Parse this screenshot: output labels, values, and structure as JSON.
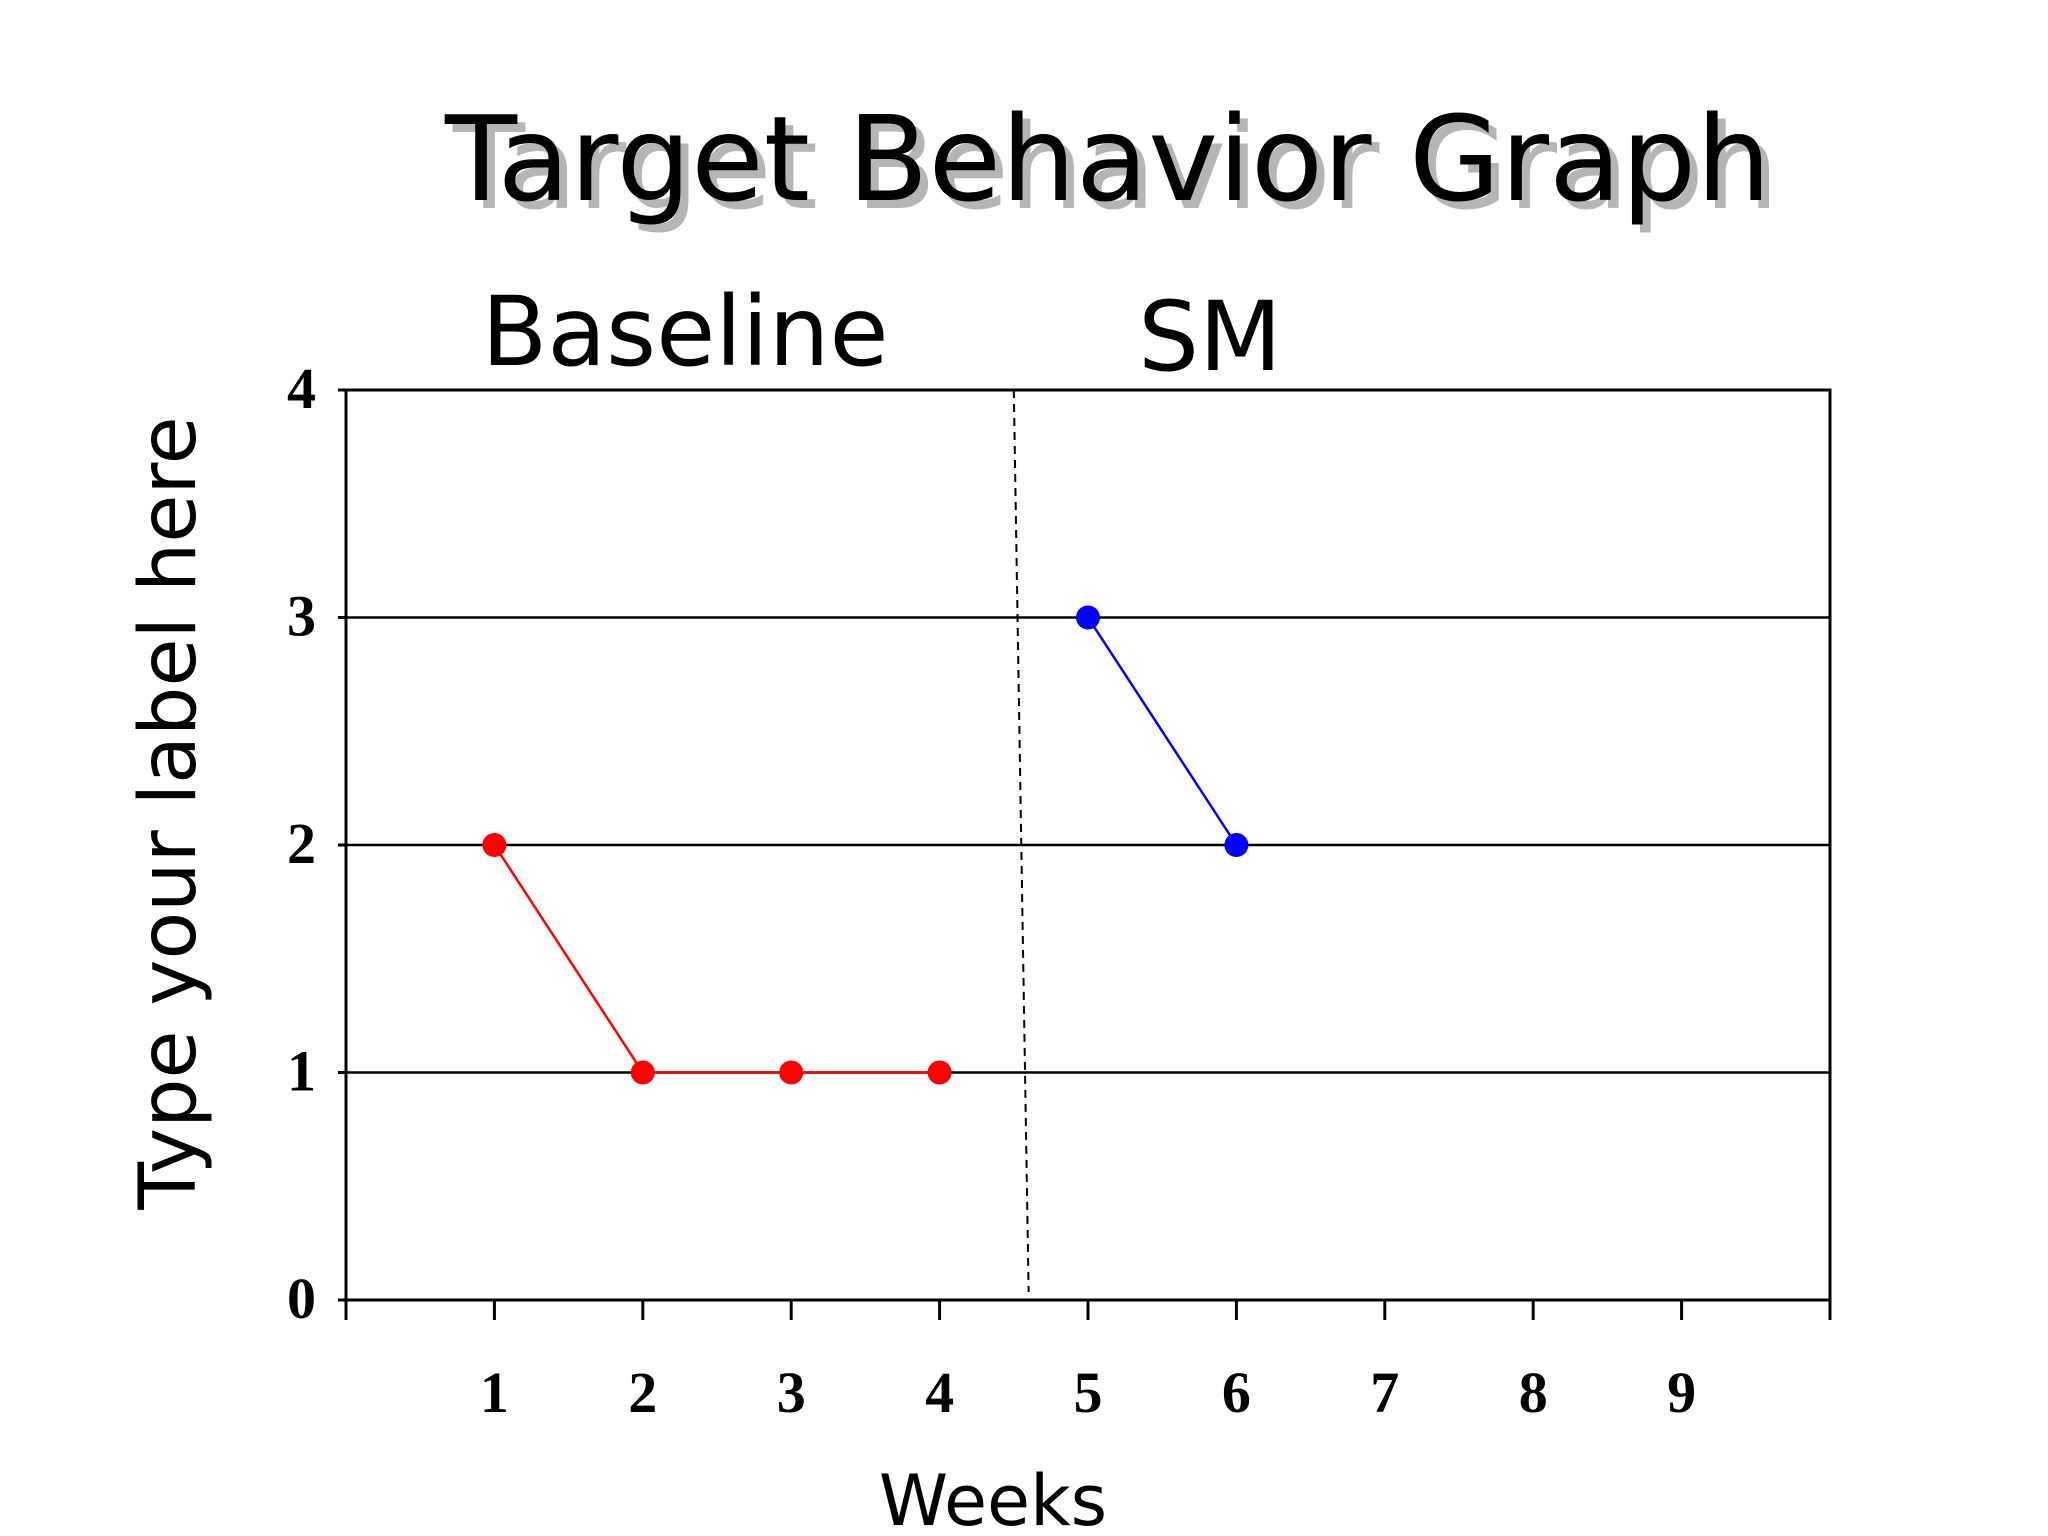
{
  "chart_data": {
    "type": "line",
    "title": "Target Behavior Graph",
    "xlabel": "Weeks",
    "ylabel": "Type your label here",
    "phase_labels": [
      "Baseline",
      "SM"
    ],
    "x_ticks": [
      "1",
      "2",
      "3",
      "4",
      "5",
      "6",
      "7",
      "8",
      "9"
    ],
    "y_ticks": [
      "0",
      "1",
      "2",
      "3",
      "4"
    ],
    "xlim": [
      0,
      10
    ],
    "ylim": [
      0,
      4
    ],
    "grid": "horizontal",
    "phase_change_line": {
      "x_top": 4.5,
      "x_bottom": 4.6,
      "style": "dashed"
    },
    "series": [
      {
        "color": "#ff0000",
        "x": [
          1,
          2,
          3,
          4
        ],
        "y": [
          2,
          1,
          1,
          1
        ]
      },
      {
        "color": "#0000ff",
        "x": [
          5,
          6
        ],
        "y": [
          3,
          2
        ]
      }
    ]
  }
}
